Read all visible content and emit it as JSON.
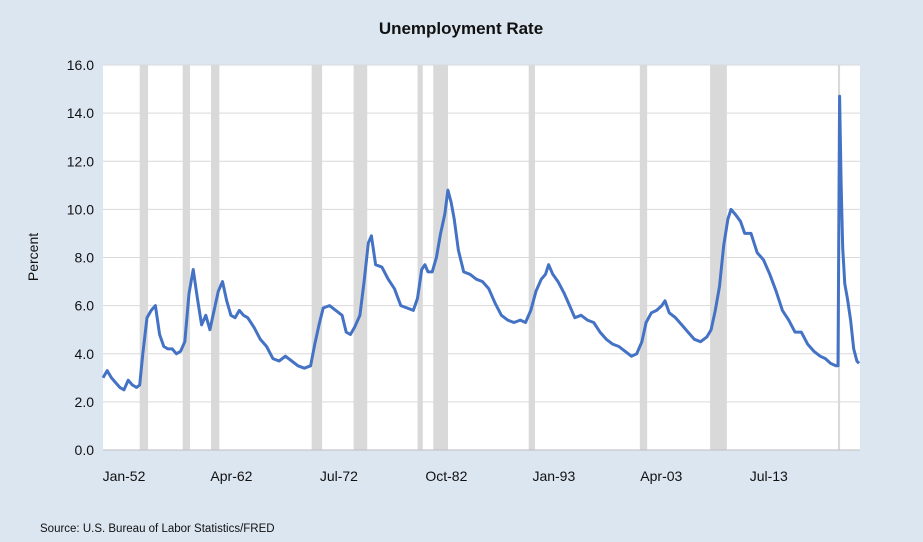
{
  "chart_data": {
    "type": "line",
    "title": "Unemployment Rate",
    "xlabel": "",
    "ylabel": "Percent",
    "source": "Source: U.S. Bureau of Labor Statistics/FRED",
    "xlim": [
      1950.0,
      2022.2
    ],
    "ylim": [
      0,
      16
    ],
    "y_ticks": [
      "0.0",
      "2.0",
      "4.0",
      "6.0",
      "8.0",
      "10.0",
      "12.0",
      "14.0",
      "16.0"
    ],
    "x_ticks": [
      {
        "label": "Jan-52",
        "x": 1952.0
      },
      {
        "label": "Apr-62",
        "x": 1962.25
      },
      {
        "label": "Jul-72",
        "x": 1972.5
      },
      {
        "label": "Oct-82",
        "x": 1982.75
      },
      {
        "label": "Jan-93",
        "x": 1993.0
      },
      {
        "label": "Apr-03",
        "x": 2003.25
      },
      {
        "label": "Jul-13",
        "x": 2013.5
      }
    ],
    "grid": true,
    "colors": {
      "line": "#4472c4",
      "recession": "#d9d9d9",
      "grid": "#d9d9d9",
      "background": "#dce6f1",
      "plot": "#ffffff"
    },
    "recessions": [
      [
        1953.5,
        1954.3
      ],
      [
        1957.6,
        1958.3
      ],
      [
        1960.3,
        1961.1
      ],
      [
        1969.9,
        1970.9
      ],
      [
        1973.9,
        1975.2
      ],
      [
        1980.0,
        1980.5
      ],
      [
        1981.5,
        1982.9
      ],
      [
        1990.6,
        1991.2
      ],
      [
        2001.2,
        2001.9
      ],
      [
        2007.9,
        2009.5
      ],
      [
        2020.1,
        2020.3
      ]
    ],
    "series": [
      {
        "values": [
          [
            1950.0,
            3.0
          ],
          [
            1950.4,
            3.3
          ],
          [
            1950.8,
            3.0
          ],
          [
            1951.2,
            2.8
          ],
          [
            1951.6,
            2.6
          ],
          [
            1952.0,
            2.5
          ],
          [
            1952.4,
            2.9
          ],
          [
            1952.8,
            2.7
          ],
          [
            1953.2,
            2.6
          ],
          [
            1953.5,
            2.7
          ],
          [
            1953.8,
            4.0
          ],
          [
            1954.2,
            5.5
          ],
          [
            1954.6,
            5.8
          ],
          [
            1955.0,
            6.0
          ],
          [
            1955.4,
            4.8
          ],
          [
            1955.8,
            4.3
          ],
          [
            1956.2,
            4.2
          ],
          [
            1956.6,
            4.2
          ],
          [
            1957.0,
            4.0
          ],
          [
            1957.4,
            4.1
          ],
          [
            1957.8,
            4.5
          ],
          [
            1958.2,
            6.5
          ],
          [
            1958.6,
            7.5
          ],
          [
            1959.0,
            6.3
          ],
          [
            1959.4,
            5.2
          ],
          [
            1959.8,
            5.6
          ],
          [
            1960.2,
            5.0
          ],
          [
            1960.6,
            5.8
          ],
          [
            1961.0,
            6.6
          ],
          [
            1961.4,
            7.0
          ],
          [
            1961.8,
            6.2
          ],
          [
            1962.2,
            5.6
          ],
          [
            1962.6,
            5.5
          ],
          [
            1963.0,
            5.8
          ],
          [
            1963.4,
            5.6
          ],
          [
            1963.8,
            5.5
          ],
          [
            1964.4,
            5.1
          ],
          [
            1965.0,
            4.6
          ],
          [
            1965.6,
            4.3
          ],
          [
            1966.2,
            3.8
          ],
          [
            1966.8,
            3.7
          ],
          [
            1967.4,
            3.9
          ],
          [
            1968.0,
            3.7
          ],
          [
            1968.6,
            3.5
          ],
          [
            1969.2,
            3.4
          ],
          [
            1969.8,
            3.5
          ],
          [
            1970.2,
            4.4
          ],
          [
            1970.6,
            5.2
          ],
          [
            1971.0,
            5.9
          ],
          [
            1971.6,
            6.0
          ],
          [
            1972.2,
            5.8
          ],
          [
            1972.8,
            5.6
          ],
          [
            1973.2,
            4.9
          ],
          [
            1973.6,
            4.8
          ],
          [
            1974.0,
            5.1
          ],
          [
            1974.5,
            5.6
          ],
          [
            1974.9,
            7.0
          ],
          [
            1975.3,
            8.6
          ],
          [
            1975.6,
            8.9
          ],
          [
            1976.0,
            7.7
          ],
          [
            1976.6,
            7.6
          ],
          [
            1977.2,
            7.1
          ],
          [
            1977.8,
            6.7
          ],
          [
            1978.4,
            6.0
          ],
          [
            1979.0,
            5.9
          ],
          [
            1979.6,
            5.8
          ],
          [
            1980.0,
            6.3
          ],
          [
            1980.4,
            7.5
          ],
          [
            1980.7,
            7.7
          ],
          [
            1981.0,
            7.4
          ],
          [
            1981.4,
            7.4
          ],
          [
            1981.8,
            8.0
          ],
          [
            1982.2,
            9.0
          ],
          [
            1982.6,
            9.8
          ],
          [
            1982.9,
            10.8
          ],
          [
            1983.2,
            10.3
          ],
          [
            1983.5,
            9.6
          ],
          [
            1983.9,
            8.3
          ],
          [
            1984.4,
            7.4
          ],
          [
            1985.0,
            7.3
          ],
          [
            1985.6,
            7.1
          ],
          [
            1986.2,
            7.0
          ],
          [
            1986.8,
            6.7
          ],
          [
            1987.4,
            6.1
          ],
          [
            1988.0,
            5.6
          ],
          [
            1988.6,
            5.4
          ],
          [
            1989.2,
            5.3
          ],
          [
            1989.8,
            5.4
          ],
          [
            1990.3,
            5.3
          ],
          [
            1990.8,
            5.8
          ],
          [
            1991.3,
            6.6
          ],
          [
            1991.8,
            7.1
          ],
          [
            1992.2,
            7.3
          ],
          [
            1992.5,
            7.7
          ],
          [
            1992.9,
            7.3
          ],
          [
            1993.4,
            7.0
          ],
          [
            1994.0,
            6.5
          ],
          [
            1994.5,
            6.0
          ],
          [
            1995.0,
            5.5
          ],
          [
            1995.6,
            5.6
          ],
          [
            1996.2,
            5.4
          ],
          [
            1996.8,
            5.3
          ],
          [
            1997.4,
            4.9
          ],
          [
            1998.0,
            4.6
          ],
          [
            1998.6,
            4.4
          ],
          [
            1999.2,
            4.3
          ],
          [
            1999.8,
            4.1
          ],
          [
            2000.4,
            3.9
          ],
          [
            2000.9,
            4.0
          ],
          [
            2001.4,
            4.5
          ],
          [
            2001.8,
            5.3
          ],
          [
            2002.3,
            5.7
          ],
          [
            2002.8,
            5.8
          ],
          [
            2003.3,
            6.0
          ],
          [
            2003.6,
            6.2
          ],
          [
            2004.0,
            5.7
          ],
          [
            2004.6,
            5.5
          ],
          [
            2005.2,
            5.2
          ],
          [
            2005.8,
            4.9
          ],
          [
            2006.4,
            4.6
          ],
          [
            2007.0,
            4.5
          ],
          [
            2007.6,
            4.7
          ],
          [
            2008.0,
            5.0
          ],
          [
            2008.4,
            5.8
          ],
          [
            2008.8,
            6.8
          ],
          [
            2009.2,
            8.5
          ],
          [
            2009.6,
            9.6
          ],
          [
            2009.9,
            10.0
          ],
          [
            2010.3,
            9.8
          ],
          [
            2010.8,
            9.5
          ],
          [
            2011.2,
            9.0
          ],
          [
            2011.8,
            9.0
          ],
          [
            2012.4,
            8.2
          ],
          [
            2013.0,
            7.9
          ],
          [
            2013.6,
            7.3
          ],
          [
            2014.2,
            6.6
          ],
          [
            2014.8,
            5.8
          ],
          [
            2015.4,
            5.4
          ],
          [
            2016.0,
            4.9
          ],
          [
            2016.6,
            4.9
          ],
          [
            2017.2,
            4.4
          ],
          [
            2017.8,
            4.1
          ],
          [
            2018.4,
            3.9
          ],
          [
            2018.9,
            3.8
          ],
          [
            2019.4,
            3.6
          ],
          [
            2019.9,
            3.5
          ],
          [
            2020.1,
            3.5
          ],
          [
            2020.25,
            14.7
          ],
          [
            2020.4,
            11.1
          ],
          [
            2020.55,
            8.4
          ],
          [
            2020.75,
            6.9
          ],
          [
            2021.0,
            6.3
          ],
          [
            2021.3,
            5.4
          ],
          [
            2021.6,
            4.2
          ],
          [
            2021.9,
            3.7
          ],
          [
            2022.1,
            3.6
          ]
        ]
      }
    ]
  }
}
